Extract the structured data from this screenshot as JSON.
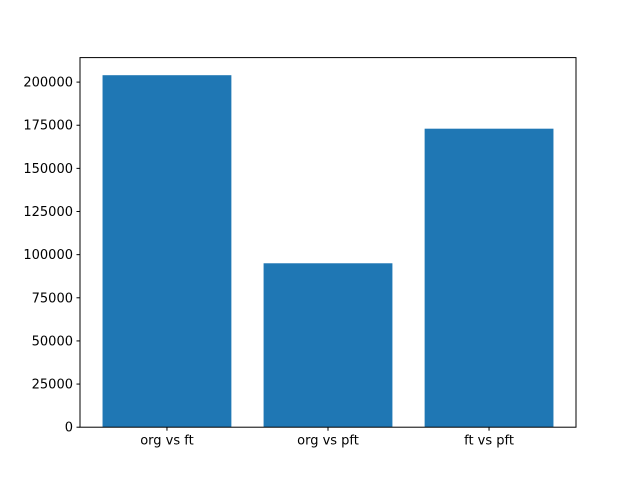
{
  "chart_data": {
    "type": "bar",
    "categories": [
      "org vs ft",
      "org vs pft",
      "ft vs pft"
    ],
    "values": [
      204000,
      95000,
      173000
    ],
    "title": "",
    "xlabel": "",
    "ylabel": "",
    "yticks": [
      0,
      25000,
      50000,
      75000,
      100000,
      125000,
      150000,
      175000,
      200000
    ],
    "yticklabels": [
      "0",
      "25000",
      "50000",
      "75000",
      "100000",
      "125000",
      "150000",
      "175000",
      "200000"
    ],
    "ylim": [
      0,
      214200
    ],
    "xlim": [
      -0.54,
      2.54
    ],
    "bar_width": 0.8,
    "grid": false,
    "legend": false,
    "bar_color": "#1f77b4",
    "axis_color": "#000000",
    "background_color": "#ffffff"
  }
}
